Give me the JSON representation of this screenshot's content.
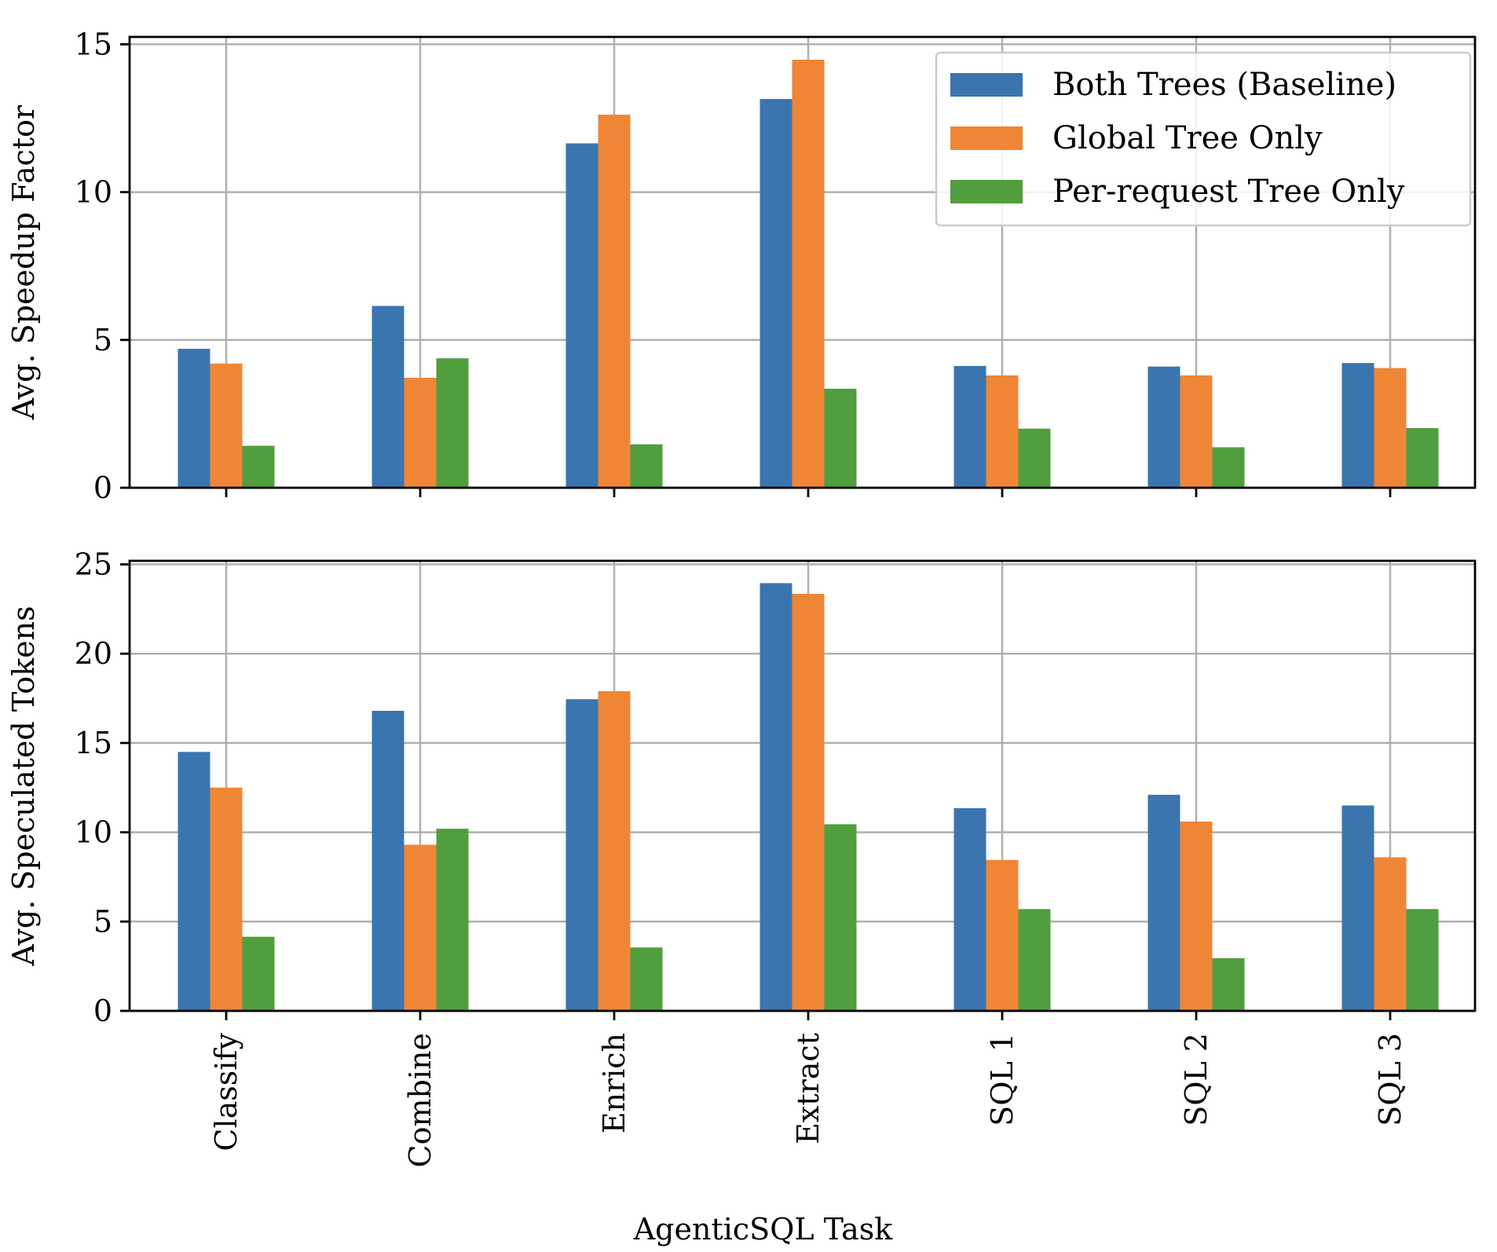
{
  "chart_data": [
    {
      "type": "bar",
      "categories": [
        "Classify",
        "Combine",
        "Enrich",
        "Extract",
        "SQL 1",
        "SQL 2",
        "SQL 3"
      ],
      "series": [
        {
          "name": "Both Trees (Baseline)",
          "color": "#3b75af",
          "values": [
            4.7,
            6.15,
            11.65,
            13.15,
            4.12,
            4.1,
            4.22
          ]
        },
        {
          "name": "Global Tree Only",
          "color": "#ef8636",
          "values": [
            4.2,
            3.72,
            12.62,
            14.48,
            3.8,
            3.8,
            4.05
          ]
        },
        {
          "name": "Per-request Tree Only",
          "color": "#519e3e",
          "values": [
            1.42,
            4.38,
            1.47,
            3.35,
            2.0,
            1.37,
            2.02
          ]
        }
      ],
      "xlabel": "",
      "ylabel": "Avg. Speedup Factor",
      "ylim": [
        0,
        15.25
      ],
      "yticks": [
        0,
        5,
        10,
        15
      ],
      "grid": true,
      "legend": "upper-right"
    },
    {
      "type": "bar",
      "categories": [
        "Classify",
        "Combine",
        "Enrich",
        "Extract",
        "SQL 1",
        "SQL 2",
        "SQL 3"
      ],
      "series": [
        {
          "name": "Both Trees (Baseline)",
          "color": "#3b75af",
          "values": [
            14.5,
            16.8,
            17.45,
            23.95,
            11.35,
            12.1,
            11.5
          ]
        },
        {
          "name": "Global Tree Only",
          "color": "#ef8636",
          "values": [
            12.5,
            9.3,
            17.9,
            23.35,
            8.45,
            10.6,
            8.6
          ]
        },
        {
          "name": "Per-request Tree Only",
          "color": "#519e3e",
          "values": [
            4.15,
            10.2,
            3.55,
            10.45,
            5.7,
            2.95,
            5.7
          ]
        }
      ],
      "xlabel": "AgenticSQL Task",
      "ylabel": "Avg. Speculated Tokens",
      "ylim": [
        0,
        25.2
      ],
      "yticks": [
        0,
        5,
        10,
        15,
        20,
        25
      ],
      "grid": true
    }
  ]
}
